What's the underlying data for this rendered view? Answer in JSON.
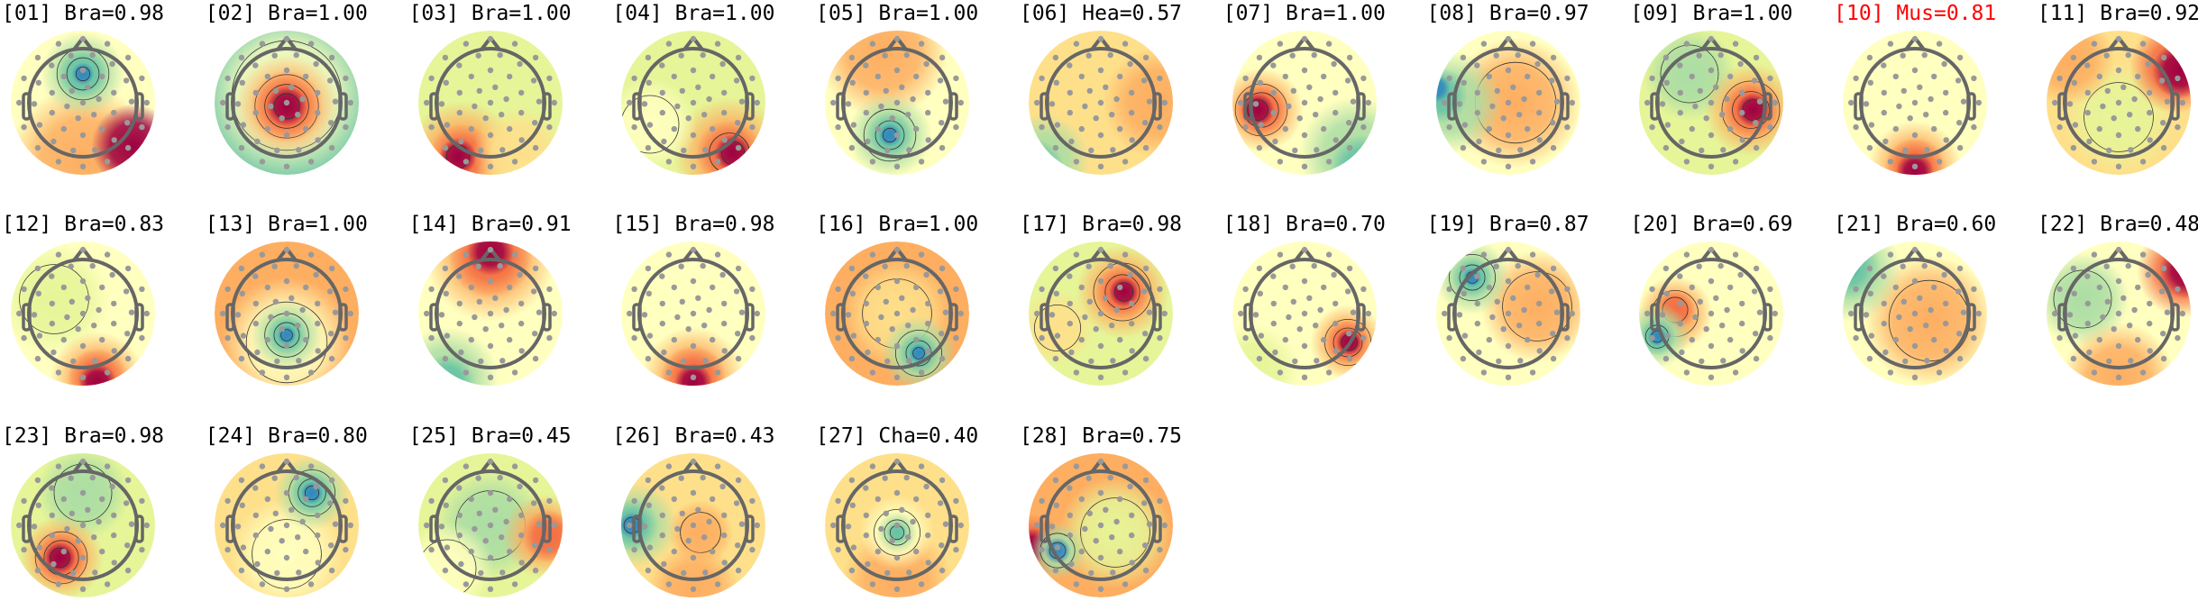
{
  "figure": {
    "components": [
      {
        "index": "01",
        "label": "Bra",
        "score": "0.98",
        "flagged": false
      },
      {
        "index": "02",
        "label": "Bra",
        "score": "1.00",
        "flagged": false
      },
      {
        "index": "03",
        "label": "Bra",
        "score": "1.00",
        "flagged": false
      },
      {
        "index": "04",
        "label": "Bra",
        "score": "1.00",
        "flagged": false
      },
      {
        "index": "05",
        "label": "Bra",
        "score": "1.00",
        "flagged": false
      },
      {
        "index": "06",
        "label": "Hea",
        "score": "0.57",
        "flagged": false
      },
      {
        "index": "07",
        "label": "Bra",
        "score": "1.00",
        "flagged": false
      },
      {
        "index": "08",
        "label": "Bra",
        "score": "0.97",
        "flagged": false
      },
      {
        "index": "09",
        "label": "Bra",
        "score": "1.00",
        "flagged": false
      },
      {
        "index": "10",
        "label": "Mus",
        "score": "0.81",
        "flagged": true
      },
      {
        "index": "11",
        "label": "Bra",
        "score": "0.92",
        "flagged": false
      },
      {
        "index": "12",
        "label": "Bra",
        "score": "0.83",
        "flagged": false
      },
      {
        "index": "13",
        "label": "Bra",
        "score": "1.00",
        "flagged": false
      },
      {
        "index": "14",
        "label": "Bra",
        "score": "0.91",
        "flagged": false
      },
      {
        "index": "15",
        "label": "Bra",
        "score": "0.98",
        "flagged": false
      },
      {
        "index": "16",
        "label": "Bra",
        "score": "1.00",
        "flagged": false
      },
      {
        "index": "17",
        "label": "Bra",
        "score": "0.98",
        "flagged": false
      },
      {
        "index": "18",
        "label": "Bra",
        "score": "0.70",
        "flagged": false
      },
      {
        "index": "19",
        "label": "Bra",
        "score": "0.87",
        "flagged": false
      },
      {
        "index": "20",
        "label": "Bra",
        "score": "0.69",
        "flagged": false
      },
      {
        "index": "21",
        "label": "Bra",
        "score": "0.60",
        "flagged": false
      },
      {
        "index": "22",
        "label": "Bra",
        "score": "0.48",
        "flagged": false
      },
      {
        "index": "23",
        "label": "Bra",
        "score": "0.98",
        "flagged": false
      },
      {
        "index": "24",
        "label": "Bra",
        "score": "0.80",
        "flagged": false
      },
      {
        "index": "25",
        "label": "Bra",
        "score": "0.45",
        "flagged": false
      },
      {
        "index": "26",
        "label": "Bra",
        "score": "0.43",
        "flagged": false
      },
      {
        "index": "27",
        "label": "Cha",
        "score": "0.40",
        "flagged": false
      },
      {
        "index": "28",
        "label": "Bra",
        "score": "0.75",
        "flagged": false
      }
    ],
    "colors": {
      "title": "#000000",
      "flagged_title": "#ff0000",
      "head_outline": "#666666",
      "electrode": "#999999",
      "contour": "#333333"
    }
  }
}
